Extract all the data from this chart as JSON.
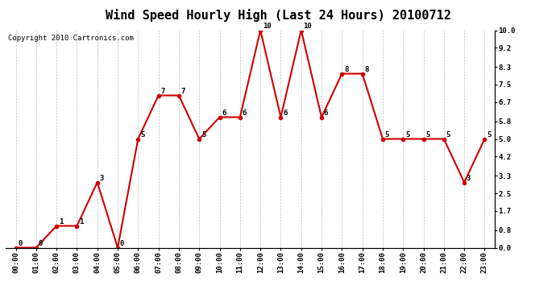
{
  "title": "Wind Speed Hourly High (Last 24 Hours) 20100712",
  "copyright_text": "Copyright 2010 Cartronics.com",
  "hours": [
    "00:00",
    "01:00",
    "02:00",
    "03:00",
    "04:00",
    "05:00",
    "06:00",
    "07:00",
    "08:00",
    "09:00",
    "10:00",
    "11:00",
    "12:00",
    "13:00",
    "14:00",
    "15:00",
    "16:00",
    "17:00",
    "18:00",
    "19:00",
    "20:00",
    "21:00",
    "22:00",
    "23:00"
  ],
  "values": [
    0,
    0,
    1,
    1,
    3,
    0,
    5,
    7,
    7,
    5,
    6,
    6,
    10,
    6,
    10,
    6,
    8,
    8,
    5,
    5,
    5,
    5,
    3,
    5
  ],
  "line_color": "#cc0000",
  "marker_color": "#cc0000",
  "background_color": "#ffffff",
  "grid_color": "#bbbbbb",
  "ylim": [
    0.0,
    10.0
  ],
  "yticks_right": [
    0.0,
    0.8,
    1.7,
    2.5,
    3.3,
    4.2,
    5.0,
    5.8,
    6.7,
    7.5,
    8.3,
    9.2,
    10.0
  ],
  "title_fontsize": 11,
  "copyright_fontsize": 6.5,
  "label_fontsize": 6.5,
  "tick_fontsize": 6.5
}
